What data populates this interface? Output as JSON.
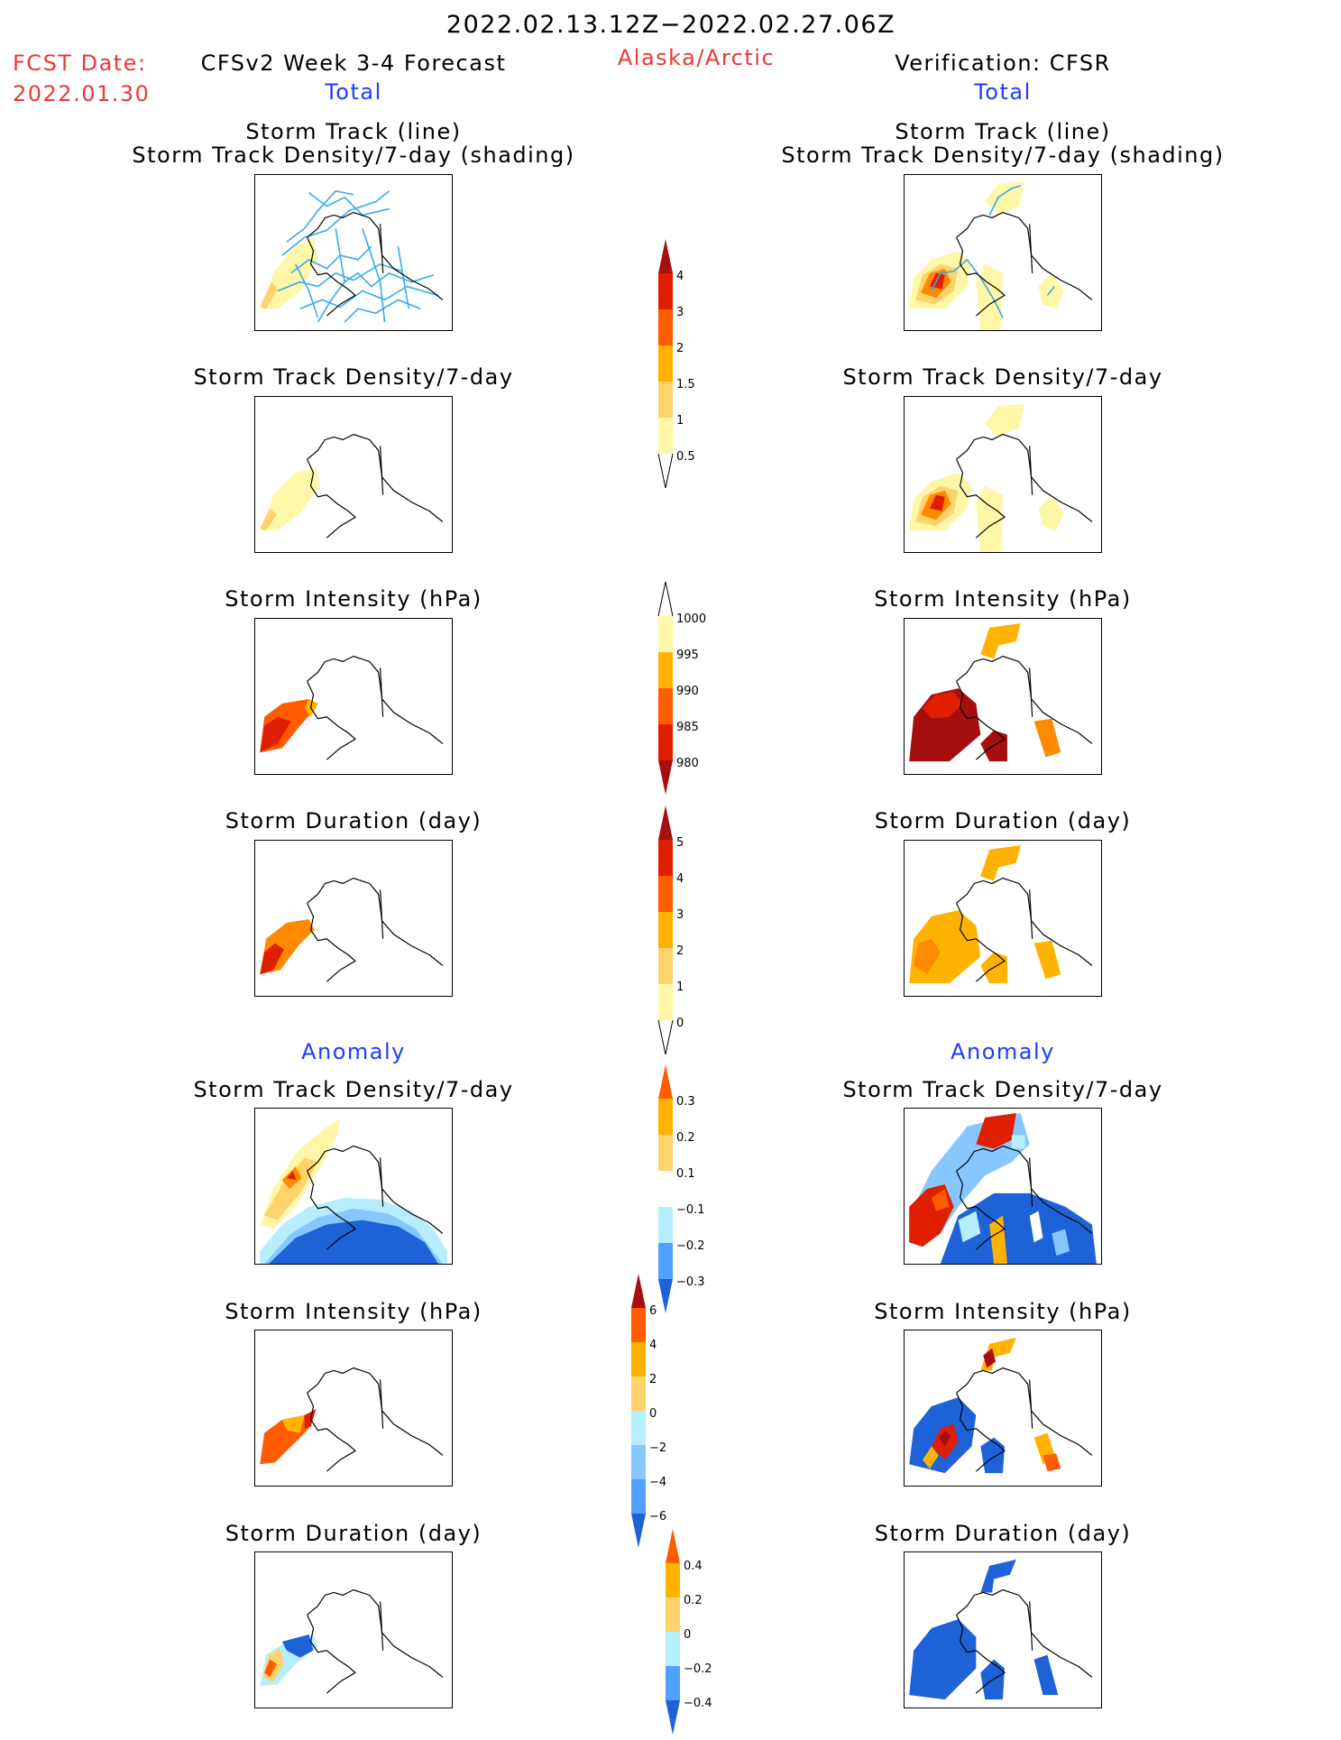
{
  "header": {
    "period": "2022.02.13.12Z−2022.02.27.06Z",
    "fcst_label": "FCST Date:",
    "fcst_date": "2022.01.30",
    "model_title": "CFSv2 Week 3-4 Forecast",
    "region": "Alaska/Arctic",
    "verification": "Verification: CFSR",
    "left_total": "Total",
    "right_total": "Total"
  },
  "anomaly_heading": {
    "left": "Anomaly",
    "right": "Anomaly"
  },
  "panel_titles": {
    "p1_line1": "Storm Track (line)",
    "p1_line2": "Storm Track Density/7-day (shading)",
    "p2": "Storm Track Density/7-day",
    "p3": "Storm Intensity (hPa)",
    "p4": "Storm Duration (day)",
    "p5": "Storm Track Density/7-day",
    "p6": "Storm Intensity (hPa)",
    "p7": "Storm Duration (day)"
  },
  "colors": {
    "yellow_light": "#fff7a8",
    "yellow": "#ffd36b",
    "orange_light": "#ffb300",
    "orange": "#ff8a00",
    "orange_red": "#ff5c00",
    "red": "#e01e00",
    "dark_red": "#a50f0f",
    "blue_light": "#b7eeff",
    "blue_mid1": "#86c7ff",
    "blue_mid2": "#4fa0ff",
    "blue": "#1e62d8",
    "track_line": "#33aaee"
  },
  "chart_data": [
    {
      "type": "heatmap",
      "name": "total_track_density",
      "colorbar_ticks": [
        "0.5",
        "1",
        "1.5",
        "2",
        "3",
        "4"
      ]
    },
    {
      "type": "heatmap",
      "name": "total_intensity",
      "colorbar_ticks": [
        "1000",
        "995",
        "990",
        "985",
        "980"
      ]
    },
    {
      "type": "heatmap",
      "name": "total_duration",
      "colorbar_ticks": [
        "0",
        "1",
        "2",
        "3",
        "4",
        "5"
      ]
    },
    {
      "type": "heatmap",
      "name": "anomaly_track_density",
      "colorbar_ticks": [
        "−0.3",
        "−0.2",
        "−0.1",
        "0.1",
        "0.2",
        "0.3"
      ]
    },
    {
      "type": "heatmap",
      "name": "anomaly_intensity",
      "colorbar_ticks": [
        "−6",
        "−4",
        "−2",
        "0",
        "2",
        "4",
        "6"
      ]
    },
    {
      "type": "heatmap",
      "name": "anomaly_duration",
      "colorbar_ticks": [
        "−0.4",
        "−0.2",
        "0",
        "0.2",
        "0.4"
      ]
    }
  ]
}
